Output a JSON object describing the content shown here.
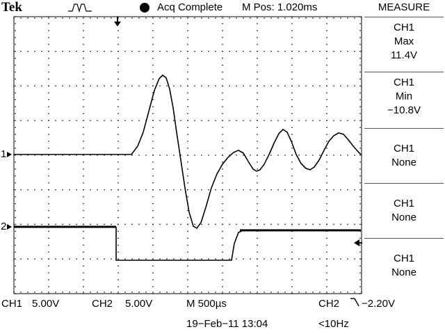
{
  "header": {
    "brand": "Tek",
    "trigger_icon": "pulse-trigger-icon",
    "status": "Acq Complete",
    "mpos": "M Pos: 1.020ms"
  },
  "measure": {
    "title": "MEASURE",
    "items": [
      {
        "source": "CH1",
        "type": "Max",
        "value": "11.4V"
      },
      {
        "source": "CH1",
        "type": "Min",
        "value": "−10.8V"
      },
      {
        "source": "CH1",
        "type": "None",
        "value": ""
      },
      {
        "source": "CH1",
        "type": "None",
        "value": ""
      },
      {
        "source": "CH1",
        "type": "None",
        "value": ""
      }
    ]
  },
  "footer": {
    "ch1_label": "CH1",
    "ch1_scale": "5.00V",
    "ch2_label": "CH2",
    "ch2_scale": "5.00V",
    "timebase": "M 500µs",
    "trig_source": "CH2",
    "trig_level": "−2.20V",
    "date": "19−Feb−11 13:04",
    "freq": "<10Hz"
  },
  "markers": {
    "ch1": "1",
    "ch2": "2"
  },
  "colors": {
    "trace": "#000000",
    "background": "#ffffff",
    "grid": "#000000"
  }
}
